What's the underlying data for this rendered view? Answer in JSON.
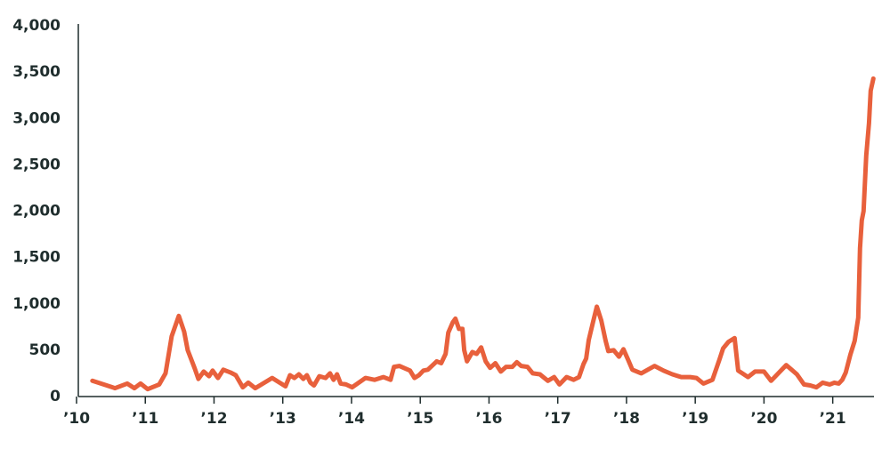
{
  "chart_data": {
    "type": "line",
    "x": [
      2010.23,
      2010.56,
      2010.737,
      2010.841,
      2010.931,
      2011.035,
      2011.203,
      2011.294,
      2011.384,
      2011.488,
      2011.565,
      2011.617,
      2011.721,
      2011.772,
      2011.85,
      2011.928,
      2011.979,
      2012.057,
      2012.135,
      2012.238,
      2012.316,
      2012.419,
      2012.497,
      2012.6,
      2012.846,
      2013.04,
      2013.105,
      2013.169,
      2013.234,
      2013.299,
      2013.351,
      2013.402,
      2013.454,
      2013.532,
      2013.622,
      2013.687,
      2013.739,
      2013.79,
      2013.842,
      2013.92,
      2014.01,
      2014.204,
      2014.334,
      2014.463,
      2014.567,
      2014.618,
      2014.696,
      2014.851,
      2014.916,
      2014.981,
      2015.045,
      2015.11,
      2015.239,
      2015.304,
      2015.369,
      2015.408,
      2015.472,
      2015.511,
      2015.563,
      2015.614,
      2015.64,
      2015.679,
      2015.757,
      2015.821,
      2015.886,
      2015.951,
      2016.016,
      2016.093,
      2016.171,
      2016.248,
      2016.339,
      2016.404,
      2016.468,
      2016.559,
      2016.636,
      2016.74,
      2016.856,
      2016.947,
      2017.025,
      2017.128,
      2017.231,
      2017.309,
      2017.374,
      2017.413,
      2017.451,
      2017.516,
      2017.568,
      2017.633,
      2017.697,
      2017.736,
      2017.814,
      2017.891,
      2017.956,
      2018.021,
      2018.085,
      2018.215,
      2018.409,
      2018.538,
      2018.668,
      2018.797,
      2018.926,
      2019.017,
      2019.12,
      2019.25,
      2019.353,
      2019.405,
      2019.483,
      2019.573,
      2019.625,
      2019.767,
      2019.871,
      2020.0,
      2020.104,
      2020.323,
      2020.479,
      2020.582,
      2020.673,
      2020.763,
      2020.854,
      2020.957,
      2021.022,
      2021.087,
      2021.139,
      2021.19,
      2021.255,
      2021.319,
      2021.371,
      2021.397,
      2021.423,
      2021.449,
      2021.488,
      2021.527,
      2021.552,
      2021.591
    ],
    "series": [
      {
        "color": "#e8603c",
        "values": [
          170,
          90,
          140,
          90,
          140,
          80,
          130,
          250,
          650,
          870,
          700,
          500,
          300,
          190,
          270,
          220,
          280,
          200,
          290,
          260,
          230,
          100,
          150,
          90,
          200,
          110,
          230,
          200,
          240,
          190,
          230,
          150,
          120,
          220,
          200,
          250,
          180,
          240,
          140,
          130,
          100,
          200,
          180,
          210,
          180,
          320,
          330,
          280,
          200,
          230,
          280,
          290,
          380,
          360,
          460,
          690,
          800,
          840,
          730,
          730,
          500,
          380,
          480,
          460,
          530,
          380,
          310,
          360,
          270,
          320,
          320,
          370,
          330,
          320,
          250,
          240,
          170,
          210,
          130,
          210,
          180,
          210,
          350,
          410,
          610,
          810,
          970,
          820,
          600,
          490,
          500,
          430,
          510,
          400,
          290,
          250,
          330,
          280,
          240,
          210,
          210,
          200,
          140,
          180,
          400,
          520,
          590,
          630,
          280,
          210,
          270,
          270,
          170,
          340,
          240,
          130,
          120,
          100,
          150,
          130,
          150,
          140,
          180,
          260,
          450,
          600,
          850,
          1600,
          1900,
          2000,
          2600,
          2950,
          3300,
          3430
        ]
      }
    ],
    "xlim": [
      2010,
      2021.6
    ],
    "xticks": [
      {
        "value": 2010,
        "label": "’10"
      },
      {
        "value": 2011,
        "label": "’11"
      },
      {
        "value": 2012,
        "label": "’12"
      },
      {
        "value": 2013,
        "label": "’13"
      },
      {
        "value": 2014,
        "label": "’14"
      },
      {
        "value": 2015,
        "label": "’15"
      },
      {
        "value": 2016,
        "label": "’16"
      },
      {
        "value": 2017,
        "label": "’17"
      },
      {
        "value": 2018,
        "label": "’18"
      },
      {
        "value": 2019,
        "label": "’19"
      },
      {
        "value": 2020,
        "label": "’20"
      },
      {
        "value": 2021,
        "label": "’21"
      }
    ],
    "ylim": [
      0,
      4000
    ],
    "yticks": [
      0,
      500,
      {
        "value": 1000,
        "label": "1,000"
      },
      {
        "value": 1500,
        "label": "1,500"
      },
      {
        "value": 2000,
        "label": "2,000"
      },
      {
        "value": 2500,
        "label": "2,500"
      },
      {
        "value": 3000,
        "label": "3,000"
      },
      {
        "value": 3500,
        "label": "3,500"
      },
      {
        "value": 4000,
        "label": "4,000"
      }
    ],
    "grid": false
  }
}
